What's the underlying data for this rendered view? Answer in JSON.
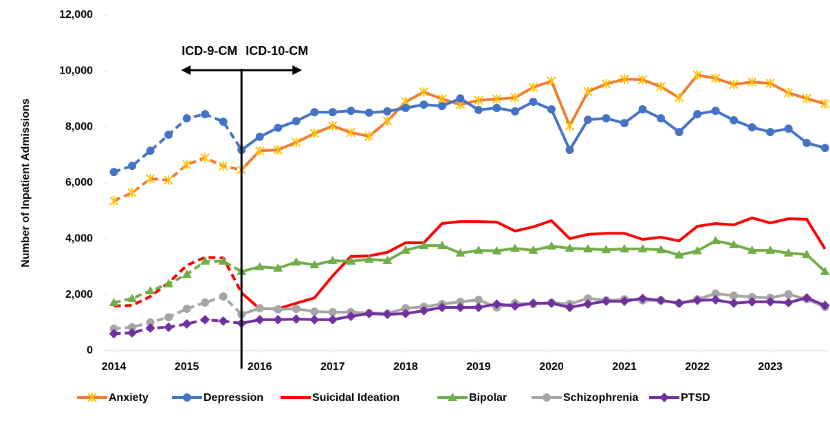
{
  "chart_data": {
    "type": "line",
    "y_label": "Number of Inpatient Admissions",
    "annotations": [
      "ICD-9-CM",
      "ICD-10-CM"
    ],
    "vline_x": 2015.75,
    "x": [
      2014,
      2014.25,
      2014.5,
      2014.75,
      2015,
      2015.25,
      2015.5,
      2015.75,
      2016,
      2016.25,
      2016.5,
      2016.75,
      2017,
      2017.25,
      2017.5,
      2017.75,
      2018,
      2018.25,
      2018.5,
      2018.75,
      2019,
      2019.25,
      2019.5,
      2019.75,
      2020,
      2020.25,
      2020.5,
      2020.75,
      2021,
      2021.25,
      2021.5,
      2021.75,
      2022,
      2022.25,
      2022.5,
      2022.75,
      2023,
      2023.25,
      2023.5,
      2023.75
    ],
    "xlim": [
      2013.9,
      2023.8
    ],
    "xticks": [
      2014,
      2015,
      2016,
      2017,
      2018,
      2019,
      2020,
      2021,
      2022,
      2023
    ],
    "ylim": [
      0,
      12000
    ],
    "yticks": [
      0,
      {
        "value": 2000,
        "label": "2,000"
      },
      {
        "value": 4000,
        "label": "4,000"
      },
      {
        "value": 6000,
        "label": "6,000"
      },
      {
        "value": 8000,
        "label": "8,000"
      },
      {
        "value": 10000,
        "label": "10,000"
      },
      {
        "value": 12000,
        "label": "12,000"
      }
    ],
    "grid": false,
    "legend": "bottom",
    "series": [
      {
        "name": "Anxiety",
        "color": "#ED7D31",
        "marker": "x",
        "marker_color": "#FFC000",
        "values": [
          5360,
          5650,
          6150,
          6100,
          6650,
          6900,
          6600,
          6470,
          7150,
          7180,
          7450,
          7770,
          8040,
          7800,
          7670,
          8210,
          8900,
          9250,
          9000,
          8800,
          8950,
          9000,
          9050,
          9420,
          9640,
          8040,
          9270,
          9540,
          9710,
          9690,
          9440,
          9050,
          9860,
          9740,
          9520,
          9610,
          9560,
          9220,
          9020,
          8830
        ]
      },
      {
        "name": "Depression",
        "color": "#4472C4",
        "marker": "circle",
        "marker_color": "#4472C4",
        "values": [
          6390,
          6610,
          7150,
          7720,
          8310,
          8460,
          8190,
          7180,
          7650,
          7970,
          8210,
          8530,
          8530,
          8580,
          8510,
          8560,
          8680,
          8800,
          8750,
          9020,
          8610,
          8680,
          8560,
          8900,
          8630,
          7180,
          8260,
          8310,
          8140,
          8630,
          8310,
          7820,
          8460,
          8580,
          8240,
          7990,
          7820,
          7940,
          7430,
          7250
        ]
      },
      {
        "name": "Suicidal Ideation",
        "color": "#FF0000",
        "marker": "none",
        "marker_color": "#FF0000",
        "values": [
          1600,
          1620,
          1940,
          2430,
          3050,
          3340,
          3320,
          2070,
          1500,
          1500,
          1700,
          1890,
          2680,
          3370,
          3390,
          3520,
          3860,
          3860,
          4550,
          4620,
          4620,
          4600,
          4280,
          4430,
          4650,
          4010,
          4160,
          4200,
          4200,
          3980,
          4060,
          3930,
          4450,
          4550,
          4500,
          4750,
          4570,
          4720,
          4700,
          3640
        ]
      },
      {
        "name": "Bipolar",
        "color": "#70AD47",
        "marker": "triangle",
        "marker_color": "#70AD47",
        "values": [
          1720,
          1870,
          2140,
          2390,
          2730,
          3200,
          3200,
          2830,
          3000,
          2950,
          3170,
          3070,
          3220,
          3200,
          3270,
          3220,
          3590,
          3760,
          3760,
          3490,
          3590,
          3570,
          3660,
          3590,
          3740,
          3660,
          3640,
          3610,
          3640,
          3640,
          3610,
          3420,
          3570,
          3930,
          3790,
          3590,
          3590,
          3490,
          3440,
          2830
        ]
      },
      {
        "name": "Schizophrenia",
        "color": "#A5A5A5",
        "marker": "circle",
        "marker_color": "#A5A5A5",
        "values": [
          790,
          840,
          1010,
          1200,
          1500,
          1720,
          1940,
          1300,
          1520,
          1480,
          1500,
          1400,
          1380,
          1380,
          1350,
          1330,
          1520,
          1570,
          1670,
          1750,
          1820,
          1550,
          1700,
          1670,
          1720,
          1670,
          1870,
          1800,
          1840,
          1800,
          1800,
          1700,
          1840,
          2040,
          1970,
          1920,
          1890,
          2020,
          1840,
          1570
        ]
      },
      {
        "name": "PTSD",
        "color": "#7030A0",
        "marker": "diamond",
        "marker_color": "#7030A0",
        "values": [
          610,
          640,
          810,
          840,
          960,
          1110,
          1060,
          980,
          1110,
          1110,
          1130,
          1110,
          1110,
          1230,
          1330,
          1300,
          1330,
          1430,
          1550,
          1550,
          1550,
          1670,
          1600,
          1700,
          1700,
          1550,
          1670,
          1770,
          1770,
          1870,
          1800,
          1700,
          1800,
          1820,
          1700,
          1750,
          1750,
          1720,
          1890,
          1620
        ]
      }
    ]
  }
}
